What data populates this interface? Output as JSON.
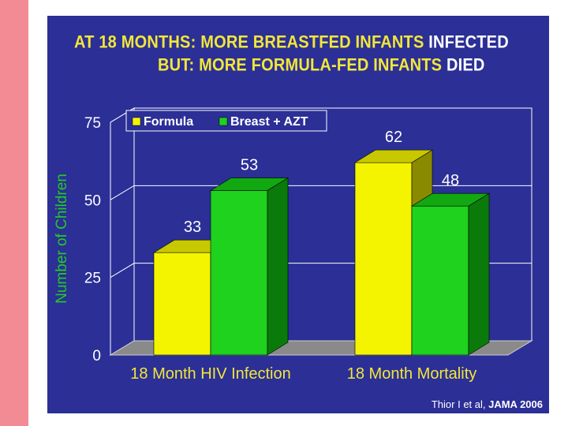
{
  "colors": {
    "side_bar": "#f28b94",
    "slide_bg": "#2b2f96",
    "plot_bg": "#2b2f96",
    "formula": "#f4f400",
    "formula_top": "#c8c800",
    "formula_side": "#8a8a00",
    "breast": "#1ed21e",
    "breast_top": "#12a812",
    "breast_side": "#0a7a0a",
    "axis_text": "#ffffff",
    "category_text": "#f2e63a",
    "ylabel_text": "#22cc22",
    "floor": "#8a8a8a"
  },
  "title": {
    "line1_a": "AT 18 MONTHS:  MORE BREASTFED INFANTS ",
    "line1_b": "INFECTED",
    "line2_a": "BUT:  MORE FORMULA-FED  INFANTS ",
    "line2_b": "DIED"
  },
  "credit": {
    "authors": "Thior I et al, ",
    "journal": "JAMA 2006"
  },
  "chart_data": {
    "type": "bar",
    "title": "",
    "xlabel": "",
    "ylabel": "Number of Children",
    "ylim": [
      0,
      75
    ],
    "yticks": [
      "0",
      "25",
      "50",
      "75"
    ],
    "ytick_values": [
      0,
      25,
      50,
      75
    ],
    "grid": true,
    "legend_position": "top-left",
    "categories": [
      "18 Month HIV Infection",
      "18 Month Mortality"
    ],
    "series": [
      {
        "name": "Formula",
        "values": [
          33,
          62
        ],
        "labels": [
          "33",
          "62"
        ]
      },
      {
        "name": "Breast + AZT",
        "values": [
          53,
          48
        ],
        "labels": [
          "53",
          "48"
        ]
      }
    ]
  }
}
